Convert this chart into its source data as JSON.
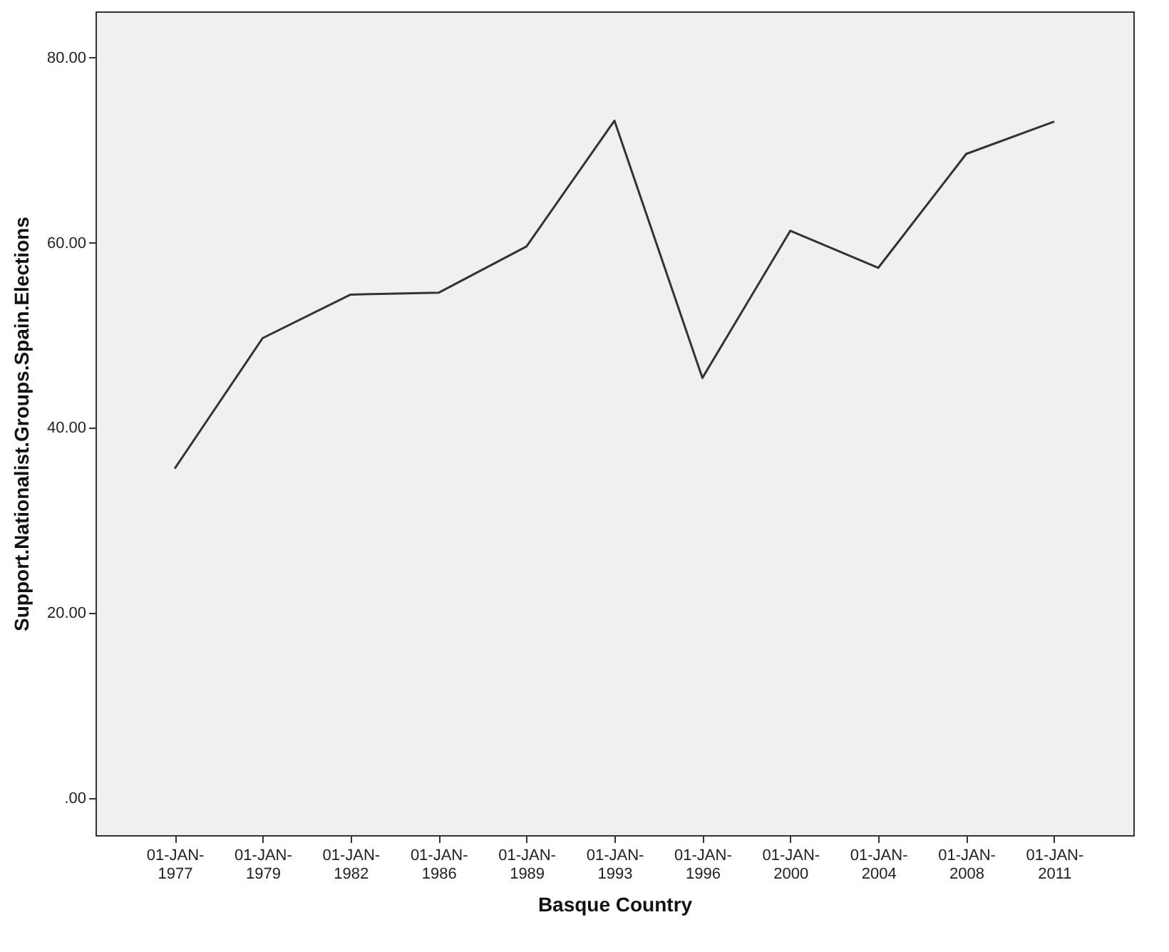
{
  "chart_data": {
    "type": "line",
    "xlabel": "Basque Country",
    "ylabel": "Support.Nationalist.Groups.Spain.Elections",
    "categories": [
      "01-JAN-1977",
      "01-JAN-1979",
      "01-JAN-1982",
      "01-JAN-1986",
      "01-JAN-1989",
      "01-JAN-1993",
      "01-JAN-1996",
      "01-JAN-2000",
      "01-JAN-2004",
      "01-JAN-2008",
      "01-JAN-2011"
    ],
    "series": [
      {
        "color": "#333333",
        "values": [
          35.6,
          49.7,
          54.4,
          54.6,
          59.6,
          73.2,
          45.4,
          61.3,
          57.3,
          69.6,
          73.1
        ]
      }
    ],
    "ylim": [
      -4,
      85
    ],
    "yticks": [
      {
        "value": 0,
        "label": ".00"
      },
      {
        "value": 20,
        "label": "20.00"
      },
      {
        "value": 40,
        "label": "40.00"
      },
      {
        "value": 60,
        "label": "60.00"
      },
      {
        "value": 80,
        "label": "80.00"
      }
    ],
    "grid": false,
    "legend": false,
    "marker": "none",
    "line_style": "solid"
  }
}
